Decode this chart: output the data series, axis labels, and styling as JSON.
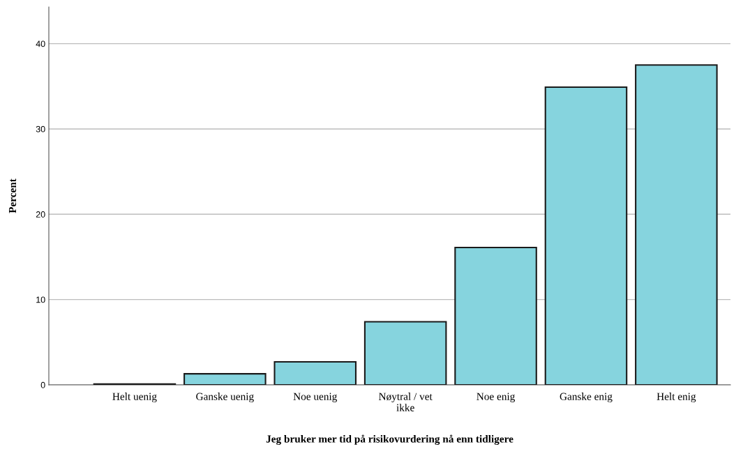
{
  "chart_data": {
    "type": "bar",
    "xlabel": "Jeg bruker mer tid på risikovurdering nå enn tidligere",
    "ylabel": "Percent",
    "categories": [
      "Helt uenig",
      "Ganske uenig",
      "Noe uenig",
      "Nøytral / vet\nikke",
      "Noe enig",
      "Ganske enig",
      "Helt enig"
    ],
    "values": [
      0.1,
      1.3,
      2.7,
      7.4,
      16.1,
      34.9,
      37.5
    ],
    "color": "#86d4de",
    "ylim": [
      0,
      44.3
    ],
    "yticks": [
      0,
      10,
      20,
      30,
      40
    ],
    "grid": "y",
    "legend": false
  }
}
